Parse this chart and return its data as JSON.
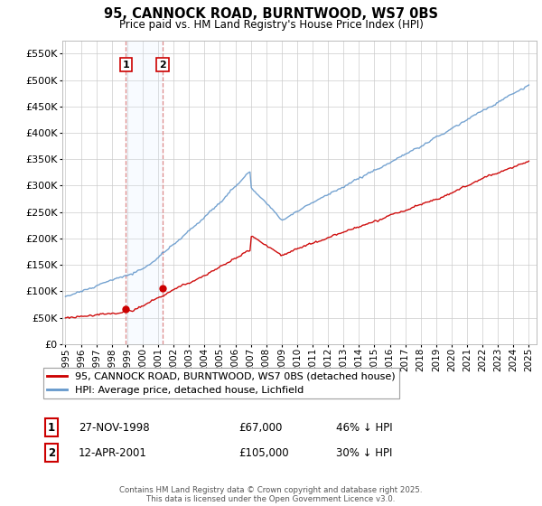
{
  "title": "95, CANNOCK ROAD, BURNTWOOD, WS7 0BS",
  "subtitle": "Price paid vs. HM Land Registry's House Price Index (HPI)",
  "red_label": "95, CANNOCK ROAD, BURNTWOOD, WS7 0BS (detached house)",
  "blue_label": "HPI: Average price, detached house, Lichfield",
  "footer": "Contains HM Land Registry data © Crown copyright and database right 2025.\nThis data is licensed under the Open Government Licence v3.0.",
  "purchase1": {
    "num": "1",
    "date": "27-NOV-1998",
    "price": 67000,
    "hpi_note": "46% ↓ HPI"
  },
  "purchase2": {
    "num": "2",
    "date": "12-APR-2001",
    "price": 105000,
    "hpi_note": "30% ↓ HPI"
  },
  "ylim": [
    0,
    575000
  ],
  "yticks": [
    0,
    50000,
    100000,
    150000,
    200000,
    250000,
    300000,
    350000,
    400000,
    450000,
    500000,
    550000
  ],
  "background_color": "#ffffff",
  "plot_bg_color": "#ffffff",
  "grid_color": "#cccccc",
  "red_color": "#cc0000",
  "blue_color": "#6699cc",
  "vline_color": "#dd8888",
  "shading_color": "#ddeeff",
  "t1": 1998.92,
  "t2": 2001.29,
  "p1_price": 67000,
  "p2_price": 105000
}
